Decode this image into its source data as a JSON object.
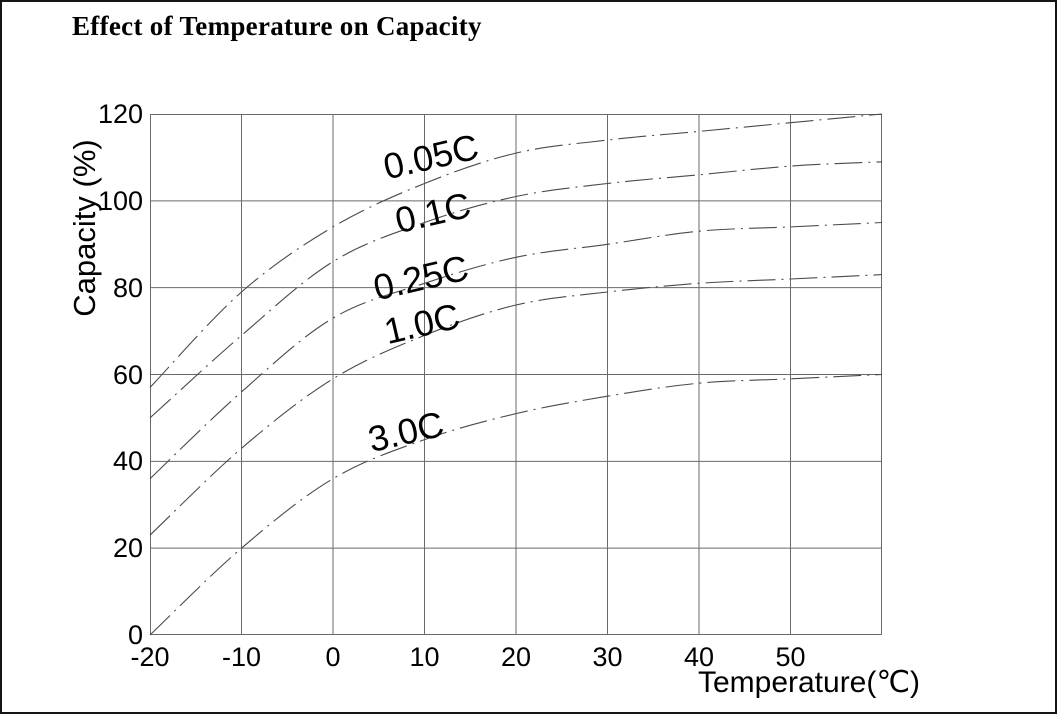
{
  "chart_data": {
    "type": "line",
    "title": "Effect of Temperature on Capacity",
    "xlabel": "Temperature(℃)",
    "ylabel": "Capacity (%)",
    "xlim": [
      -20,
      60
    ],
    "ylim": [
      0,
      120
    ],
    "x_ticks": [
      -20,
      -10,
      0,
      10,
      20,
      30,
      40,
      50
    ],
    "y_ticks": [
      0,
      20,
      40,
      60,
      80,
      100,
      120
    ],
    "grid": true,
    "legend_position": "inline-curve-labels",
    "line_style": "dash-dot",
    "colors": {
      "curve": "#4a4a4a",
      "grid": "#6a6a6a",
      "text": "#000000",
      "background": "#ffffff"
    },
    "x": [
      -20,
      -10,
      0,
      10,
      20,
      30,
      40,
      50,
      60
    ],
    "series": [
      {
        "name": "0.05C",
        "values": [
          57,
          79,
          94,
          104,
          111,
          114,
          116,
          118,
          120
        ]
      },
      {
        "name": "0.1C",
        "values": [
          50,
          69,
          86,
          95,
          101,
          104,
          106,
          108,
          109
        ]
      },
      {
        "name": "0.25C",
        "values": [
          36,
          56,
          73,
          81,
          87,
          90,
          93,
          94,
          95
        ]
      },
      {
        "name": "1.0C",
        "values": [
          23,
          43,
          59,
          69,
          76,
          79,
          81,
          82,
          83
        ]
      },
      {
        "name": "3.0C",
        "values": [
          0,
          20,
          36,
          45,
          51,
          55,
          58,
          59,
          60
        ]
      }
    ]
  }
}
